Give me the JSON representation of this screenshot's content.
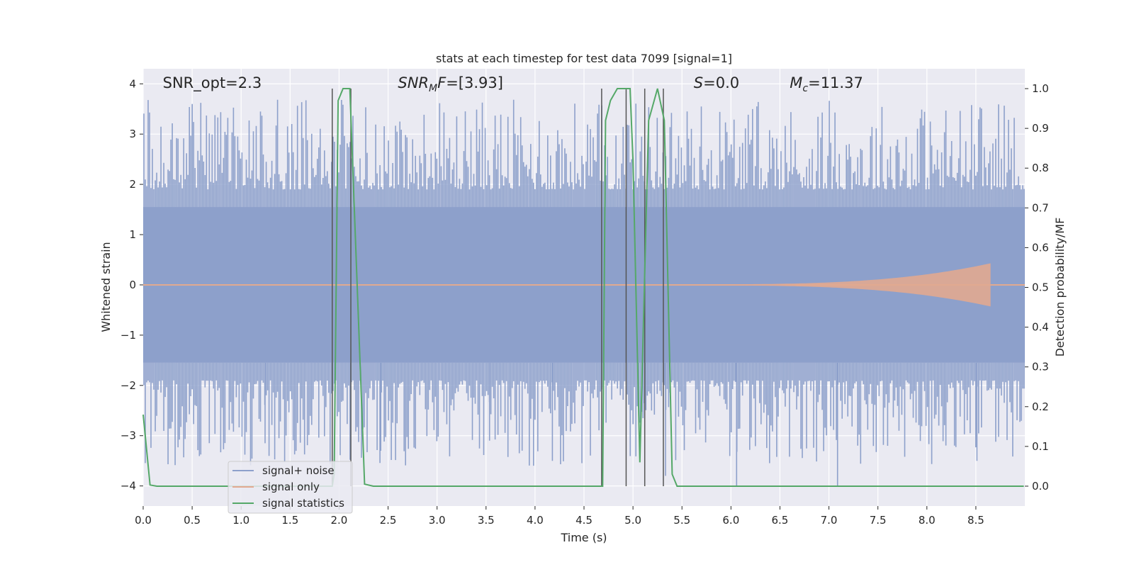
{
  "chart_data": {
    "type": "line",
    "title": "stats at each timestep for test data 7099 [signal=1]",
    "xlabel": "Time (s)",
    "ylabel": "Whitened strain",
    "y2label": "Detection probability/MF",
    "xlim": [
      0,
      9.0
    ],
    "ylim": [
      -4.4,
      4.3
    ],
    "y2lim": [
      -0.05,
      1.05
    ],
    "xticks": [
      0.0,
      0.5,
      1.0,
      1.5,
      2.0,
      2.5,
      3.0,
      3.5,
      4.0,
      4.5,
      5.0,
      5.5,
      6.0,
      6.5,
      7.0,
      7.5,
      8.0,
      8.5
    ],
    "xtick_labels": [
      "0.0",
      "0.5",
      "1.0",
      "1.5",
      "2.0",
      "2.5",
      "3.0",
      "3.5",
      "4.0",
      "4.5",
      "5.0",
      "5.5",
      "6.0",
      "6.5",
      "7.0",
      "7.5",
      "8.0",
      "8.5"
    ],
    "yticks": [
      4,
      3,
      2,
      1,
      0,
      -1,
      -2,
      -3,
      -4
    ],
    "ytick_labels": [
      "4",
      "3",
      "2",
      "1",
      "0",
      "−1",
      "−2",
      "−3",
      "−4"
    ],
    "y2ticks": [
      1.0,
      0.9,
      0.8,
      0.7,
      0.6,
      0.5,
      0.4,
      0.3,
      0.2,
      0.1,
      0.0
    ],
    "y2tick_labels": [
      "1.0",
      "0.9",
      "0.8",
      "0.7",
      "0.6",
      "0.5",
      "0.4",
      "0.3",
      "0.2",
      "0.1",
      "0.0"
    ],
    "grid": true,
    "legend_position": "lower-left",
    "series": [
      {
        "name": "signal+ noise",
        "color": "#8da0cb",
        "kind": "noise",
        "duration": 9.0,
        "core_amplitude": 1.55,
        "peak_min": 1.9,
        "peak_max": 3.7,
        "min_extremes": [
          -3.15,
          -3.3,
          -3.1,
          -3.5,
          -3.8,
          -4.0,
          -4.0,
          -3.5
        ]
      },
      {
        "name": "signal only",
        "color": "#e1a990",
        "kind": "chirp",
        "start": 5.5,
        "end": 8.65,
        "max_amplitude": 0.42
      },
      {
        "name": "signal statistics",
        "color": "#55a868",
        "axis": "right",
        "x": [
          0.0,
          0.07,
          0.14,
          1.93,
          1.95,
          1.99,
          2.04,
          2.11,
          2.26,
          2.35,
          4.69,
          4.72,
          4.77,
          4.84,
          4.97,
          5.0,
          5.07,
          5.16,
          5.25,
          5.32,
          5.4,
          5.45,
          8.99
        ],
        "y": [
          0.18,
          0.003,
          0.0,
          0.0,
          0.03,
          0.97,
          1.0,
          1.0,
          0.005,
          0.0,
          0.0,
          0.92,
          0.97,
          1.0,
          1.0,
          0.82,
          0.06,
          0.92,
          1.0,
          0.92,
          0.03,
          0.0,
          0.0
        ]
      }
    ],
    "vlines": {
      "color": "#555555",
      "x": [
        1.93,
        2.12,
        4.68,
        4.93,
        5.12,
        5.31
      ],
      "y2_range": [
        0.0,
        1.0
      ]
    },
    "annotations": [
      {
        "id": "snr_opt",
        "x": 0.2,
        "text": "SNR_opt=2.3"
      },
      {
        "id": "snr_mf",
        "x": 2.6,
        "prefix": "SNR",
        "sub": "M",
        "suffix": "F=[3.93]"
      },
      {
        "id": "s",
        "x": 5.62,
        "prefix": "S",
        "sub": "",
        "suffix": "=0.0"
      },
      {
        "id": "mc",
        "x": 6.6,
        "prefix": "M",
        "sub": "c",
        "suffix": "=11.37"
      }
    ]
  }
}
